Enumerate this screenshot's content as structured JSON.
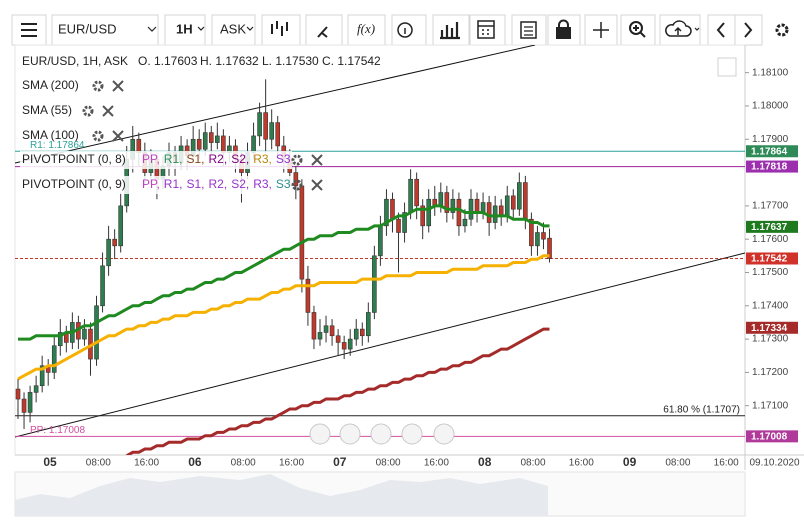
{
  "toolbar": {
    "symbol": "EUR/USD",
    "timeframe": "1H",
    "side": "ASK",
    "fx": "f(x)"
  },
  "header": {
    "text": "EUR/USD, 1H, ASK",
    "ohlc": [
      "O. 1.17603",
      "H. 1.17632",
      "L. 1.17530",
      "C. 1.17542"
    ]
  },
  "pivots": [
    {
      "name": "PIVOTPOINT (0, 8)",
      "items": [
        {
          "text": "PP,",
          "color": "#c040c0"
        },
        {
          "text": "R1,",
          "color": "#2e8b57"
        },
        {
          "text": "S1,",
          "color": "#8b4513"
        },
        {
          "text": "R2,",
          "color": "#800080"
        },
        {
          "text": "S2,",
          "color": "#800080"
        },
        {
          "text": "R3,",
          "color": "#b8860b"
        },
        {
          "text": "S3",
          "color": "#9932cc"
        }
      ]
    },
    {
      "name": "PIVOTPOINT (0, 9)",
      "items": [
        {
          "text": "PP,",
          "color": "#c040c0"
        },
        {
          "text": "R1,",
          "color": "#9932cc"
        },
        {
          "text": "S1,",
          "color": "#9932cc"
        },
        {
          "text": "R2,",
          "color": "#9932cc"
        },
        {
          "text": "S2,",
          "color": "#9932cc"
        },
        {
          "text": "R3,",
          "color": "#9932cc"
        },
        {
          "text": "S3",
          "color": "#2f8f8f"
        }
      ]
    }
  ],
  "chart_data": {
    "type": "candlestick",
    "up_color": "#2e7d4f",
    "down_color": "#c0392b",
    "ylim": [
      1.16952,
      1.18183
    ],
    "yticks": [
      {
        "value": 1.181,
        "label": "1.18100"
      },
      {
        "value": 1.18,
        "label": "1.18000"
      },
      {
        "value": 1.179,
        "label": "1.17900"
      },
      {
        "value": 1.177,
        "label": "1.17700"
      },
      {
        "value": 1.176,
        "label": "1.17600"
      },
      {
        "value": 1.175,
        "label": "1.17500"
      },
      {
        "value": 1.174,
        "label": "1.17400"
      },
      {
        "value": 1.173,
        "label": "1.17300"
      },
      {
        "value": 1.172,
        "label": "1.17200"
      },
      {
        "value": 1.171,
        "label": "1.17100"
      }
    ],
    "xticks": [
      "05",
      "08:00",
      "16:00",
      "06",
      "08:00",
      "16:00",
      "07",
      "08:00",
      "16:00",
      "08",
      "08:00",
      "16:00",
      "09",
      "08:00",
      "16:00",
      "09.10.2020"
    ],
    "candles": [
      [
        1.1715,
        1.1718,
        1.1706,
        1.1712
      ],
      [
        1.1712,
        1.1714,
        1.1703,
        1.1708
      ],
      [
        1.1708,
        1.1716,
        1.1705,
        1.1714
      ],
      [
        1.1714,
        1.1719,
        1.1711,
        1.1716
      ],
      [
        1.1716,
        1.1725,
        1.1714,
        1.1722
      ],
      [
        1.1722,
        1.1724,
        1.1716,
        1.172
      ],
      [
        1.172,
        1.1731,
        1.1718,
        1.1728
      ],
      [
        1.1728,
        1.1736,
        1.1725,
        1.1732
      ],
      [
        1.1732,
        1.1734,
        1.1726,
        1.1729
      ],
      [
        1.1729,
        1.1738,
        1.1727,
        1.1735
      ],
      [
        1.1735,
        1.1737,
        1.1727,
        1.173
      ],
      [
        1.173,
        1.1736,
        1.1728,
        1.1733
      ],
      [
        1.1733,
        1.1735,
        1.1719,
        1.1724
      ],
      [
        1.1724,
        1.1743,
        1.1722,
        1.174
      ],
      [
        1.174,
        1.1756,
        1.1738,
        1.1752
      ],
      [
        1.1752,
        1.1764,
        1.1749,
        1.176
      ],
      [
        1.176,
        1.1763,
        1.1754,
        1.1758
      ],
      [
        1.1758,
        1.1774,
        1.1756,
        1.177
      ],
      [
        1.177,
        1.1788,
        1.1768,
        1.1784
      ],
      [
        1.1784,
        1.1794,
        1.178,
        1.179
      ],
      [
        1.179,
        1.1792,
        1.1782,
        1.1786
      ],
      [
        1.1786,
        1.1789,
        1.1776,
        1.178
      ],
      [
        1.178,
        1.1787,
        1.1777,
        1.1784
      ],
      [
        1.1784,
        1.1786,
        1.1772,
        1.1778
      ],
      [
        1.1778,
        1.1785,
        1.1775,
        1.1782
      ],
      [
        1.1782,
        1.1789,
        1.1779,
        1.1786
      ],
      [
        1.1786,
        1.1788,
        1.1779,
        1.1783
      ],
      [
        1.1783,
        1.1791,
        1.1781,
        1.1788
      ],
      [
        1.1788,
        1.179,
        1.1781,
        1.1785
      ],
      [
        1.1785,
        1.1794,
        1.1783,
        1.179
      ],
      [
        1.179,
        1.1793,
        1.1784,
        1.1787
      ],
      [
        1.1787,
        1.1795,
        1.1785,
        1.1792
      ],
      [
        1.1792,
        1.1794,
        1.1785,
        1.1789
      ],
      [
        1.1789,
        1.1795,
        1.1787,
        1.1791
      ],
      [
        1.1791,
        1.1793,
        1.1782,
        1.1786
      ],
      [
        1.1786,
        1.1791,
        1.1783,
        1.1788
      ],
      [
        1.1788,
        1.179,
        1.178,
        1.1784
      ],
      [
        1.1784,
        1.1786,
        1.1771,
        1.178
      ],
      [
        1.178,
        1.1789,
        1.1778,
        1.1786
      ],
      [
        1.1786,
        1.1795,
        1.1784,
        1.1791
      ],
      [
        1.1791,
        1.1801,
        1.1788,
        1.1798
      ],
      [
        1.1798,
        1.1808,
        1.1786,
        1.179
      ],
      [
        1.179,
        1.1799,
        1.1787,
        1.1795
      ],
      [
        1.1795,
        1.1797,
        1.1784,
        1.1788
      ],
      [
        1.1788,
        1.1791,
        1.178,
        1.1784
      ],
      [
        1.1784,
        1.1787,
        1.1776,
        1.178
      ],
      [
        1.178,
        1.1782,
        1.1772,
        1.1776
      ],
      [
        1.1776,
        1.1778,
        1.1744,
        1.1748
      ],
      [
        1.1748,
        1.1752,
        1.1734,
        1.1738
      ],
      [
        1.1738,
        1.174,
        1.1727,
        1.173
      ],
      [
        1.173,
        1.1736,
        1.1728,
        1.1732
      ],
      [
        1.1732,
        1.1737,
        1.1729,
        1.1734
      ],
      [
        1.1734,
        1.1736,
        1.1728,
        1.1731
      ],
      [
        1.1731,
        1.1733,
        1.1725,
        1.1729
      ],
      [
        1.1729,
        1.1731,
        1.1724,
        1.1727
      ],
      [
        1.1727,
        1.1733,
        1.1725,
        1.173
      ],
      [
        1.173,
        1.1736,
        1.1728,
        1.1733
      ],
      [
        1.1733,
        1.1735,
        1.1728,
        1.1731
      ],
      [
        1.1731,
        1.1741,
        1.1729,
        1.1738
      ],
      [
        1.1738,
        1.1758,
        1.1736,
        1.1755
      ],
      [
        1.1755,
        1.1767,
        1.1752,
        1.1764
      ],
      [
        1.1764,
        1.1775,
        1.1761,
        1.1772
      ],
      [
        1.1772,
        1.1774,
        1.1762,
        1.1766
      ],
      [
        1.1766,
        1.1768,
        1.175,
        1.1762
      ],
      [
        1.1762,
        1.1771,
        1.1759,
        1.1768
      ],
      [
        1.1768,
        1.1781,
        1.1766,
        1.1778
      ],
      [
        1.1778,
        1.178,
        1.1766,
        1.177
      ],
      [
        1.177,
        1.1772,
        1.176,
        1.1764
      ],
      [
        1.1764,
        1.1775,
        1.1762,
        1.1772
      ],
      [
        1.1772,
        1.1776,
        1.1767,
        1.177
      ],
      [
        1.177,
        1.1777,
        1.1768,
        1.1774
      ],
      [
        1.1774,
        1.1776,
        1.1765,
        1.1768
      ],
      [
        1.1768,
        1.1775,
        1.1766,
        1.1772
      ],
      [
        1.1772,
        1.1774,
        1.1761,
        1.1764
      ],
      [
        1.1764,
        1.1769,
        1.1762,
        1.1766
      ],
      [
        1.1766,
        1.1775,
        1.1764,
        1.1772
      ],
      [
        1.1772,
        1.1774,
        1.1765,
        1.1768
      ],
      [
        1.1768,
        1.1774,
        1.1766,
        1.1771
      ],
      [
        1.1771,
        1.1773,
        1.1761,
        1.1765
      ],
      [
        1.1765,
        1.1773,
        1.1763,
        1.177
      ],
      [
        1.177,
        1.1772,
        1.1764,
        1.1767
      ],
      [
        1.1767,
        1.1776,
        1.1765,
        1.1773
      ],
      [
        1.1773,
        1.1775,
        1.1766,
        1.1769
      ],
      [
        1.1769,
        1.178,
        1.1767,
        1.1777
      ],
      [
        1.1777,
        1.1779,
        1.1763,
        1.1766
      ],
      [
        1.1766,
        1.1768,
        1.1755,
        1.1758
      ],
      [
        1.1758,
        1.1764,
        1.1755,
        1.1762
      ],
      [
        1.1762,
        1.1765,
        1.1757,
        1.176
      ],
      [
        1.17603,
        1.17632,
        1.1753,
        1.17542
      ]
    ],
    "series": [
      {
        "name": "SMA (200)",
        "color": "#a52a2a",
        "values": [
          null,
          null,
          null,
          null,
          null,
          null,
          null,
          null,
          null,
          null,
          null,
          null,
          null,
          null,
          null,
          null,
          null,
          null,
          1.1695,
          1.1696,
          1.1696,
          1.1697,
          1.1697,
          1.1698,
          1.1698,
          1.1699,
          1.1699,
          1.1699,
          1.17,
          1.17,
          1.17,
          1.1701,
          1.1701,
          1.1702,
          1.1702,
          1.1703,
          1.1703,
          1.1704,
          1.1704,
          1.1705,
          1.1705,
          1.1706,
          1.1706,
          1.1707,
          1.1708,
          1.1709,
          1.1709,
          1.171,
          1.171,
          1.1711,
          1.1711,
          1.1712,
          1.1712,
          1.1712,
          1.1713,
          1.1713,
          1.1714,
          1.1714,
          1.1715,
          1.1715,
          1.1716,
          1.1716,
          1.1717,
          1.1717,
          1.1718,
          1.1718,
          1.1719,
          1.1719,
          1.172,
          1.172,
          1.1721,
          1.1721,
          1.1722,
          1.1722,
          1.1723,
          1.1723,
          1.1724,
          1.1725,
          1.1725,
          1.1726,
          1.1727,
          1.1727,
          1.1728,
          1.1729,
          1.173,
          1.1731,
          1.1732,
          1.1733,
          1.1733
        ]
      },
      {
        "name": "SMA (55)",
        "color": "#1f8a1f",
        "values": [
          1.173,
          1.173,
          1.173,
          1.1731,
          1.1731,
          1.1731,
          1.1731,
          1.1731,
          1.1732,
          1.1732,
          1.1733,
          1.1734,
          1.1734,
          1.1735,
          1.1736,
          1.1737,
          1.1737,
          1.1738,
          1.1739,
          1.174,
          1.174,
          1.1741,
          1.1741,
          1.1742,
          1.1743,
          1.1743,
          1.1744,
          1.1744,
          1.1745,
          1.1745,
          1.1746,
          1.1747,
          1.1747,
          1.1748,
          1.1748,
          1.1749,
          1.175,
          1.175,
          1.1751,
          1.1752,
          1.1753,
          1.1754,
          1.1755,
          1.1756,
          1.1757,
          1.1757,
          1.1758,
          1.1759,
          1.176,
          1.176,
          1.1761,
          1.1761,
          1.1761,
          1.1762,
          1.1762,
          1.1762,
          1.1763,
          1.1763,
          1.1763,
          1.1764,
          1.1764,
          1.1765,
          1.1766,
          1.1767,
          1.1767,
          1.1768,
          1.1769,
          1.1769,
          1.1769,
          1.177,
          1.177,
          1.1769,
          1.1769,
          1.1769,
          1.1768,
          1.1768,
          1.1768,
          1.1768,
          1.1767,
          1.1767,
          1.1767,
          1.1767,
          1.1766,
          1.1766,
          1.1766,
          1.1765,
          1.1765,
          1.1764,
          1.1764
        ]
      },
      {
        "name": "SMA (100)",
        "color": "#f5b000",
        "values": [
          1.1718,
          1.1719,
          1.172,
          1.1721,
          1.1721,
          1.1722,
          1.1722,
          1.1723,
          1.1724,
          1.1725,
          1.1726,
          1.1727,
          1.1728,
          1.1729,
          1.173,
          1.1731,
          1.1731,
          1.1732,
          1.1733,
          1.1733,
          1.1734,
          1.1734,
          1.1735,
          1.1735,
          1.1736,
          1.1736,
          1.1737,
          1.1737,
          1.1737,
          1.1738,
          1.1738,
          1.1738,
          1.1739,
          1.1739,
          1.174,
          1.174,
          1.1741,
          1.1741,
          1.1742,
          1.1742,
          1.1742,
          1.1743,
          1.1744,
          1.1744,
          1.1745,
          1.1745,
          1.1746,
          1.1746,
          1.1746,
          1.1746,
          1.1747,
          1.1747,
          1.1747,
          1.1747,
          1.1747,
          1.1747,
          1.1747,
          1.1748,
          1.1748,
          1.1748,
          1.1748,
          1.1749,
          1.1749,
          1.1749,
          1.1749,
          1.1749,
          1.175,
          1.175,
          1.175,
          1.175,
          1.175,
          1.175,
          1.1751,
          1.1751,
          1.1751,
          1.1751,
          1.1751,
          1.1752,
          1.1752,
          1.1752,
          1.1752,
          1.1752,
          1.1753,
          1.1753,
          1.1753,
          1.1754,
          1.1754,
          1.1755,
          1.1755
        ]
      }
    ],
    "levels": [
      {
        "value": 1.17864,
        "color": "#2aa198",
        "label": "R1: 1.17864",
        "corner": "left"
      },
      {
        "value": 1.17818,
        "color": "#a020a0"
      },
      {
        "value": 1.17542,
        "color": "#c0392b",
        "style": "dashed"
      },
      {
        "value": 1.1707,
        "color": "#222222",
        "label": "61.80 % (1.1707)",
        "corner": "right"
      },
      {
        "value": 1.17008,
        "color": "#d04f9f",
        "label": "PP: 1.17008",
        "corner": "left"
      }
    ],
    "price_tags": [
      {
        "value": 1.17864,
        "color": "#2e8b57"
      },
      {
        "value": 1.17818,
        "color": "#9b2fae"
      },
      {
        "value": 1.17637,
        "color": "#1f7a1f"
      },
      {
        "value": 1.17542,
        "color": "#d0322a"
      },
      {
        "value": 1.17334,
        "color": "#a52a2a"
      },
      {
        "value": 1.17008,
        "color": "#b03a9a"
      }
    ]
  }
}
